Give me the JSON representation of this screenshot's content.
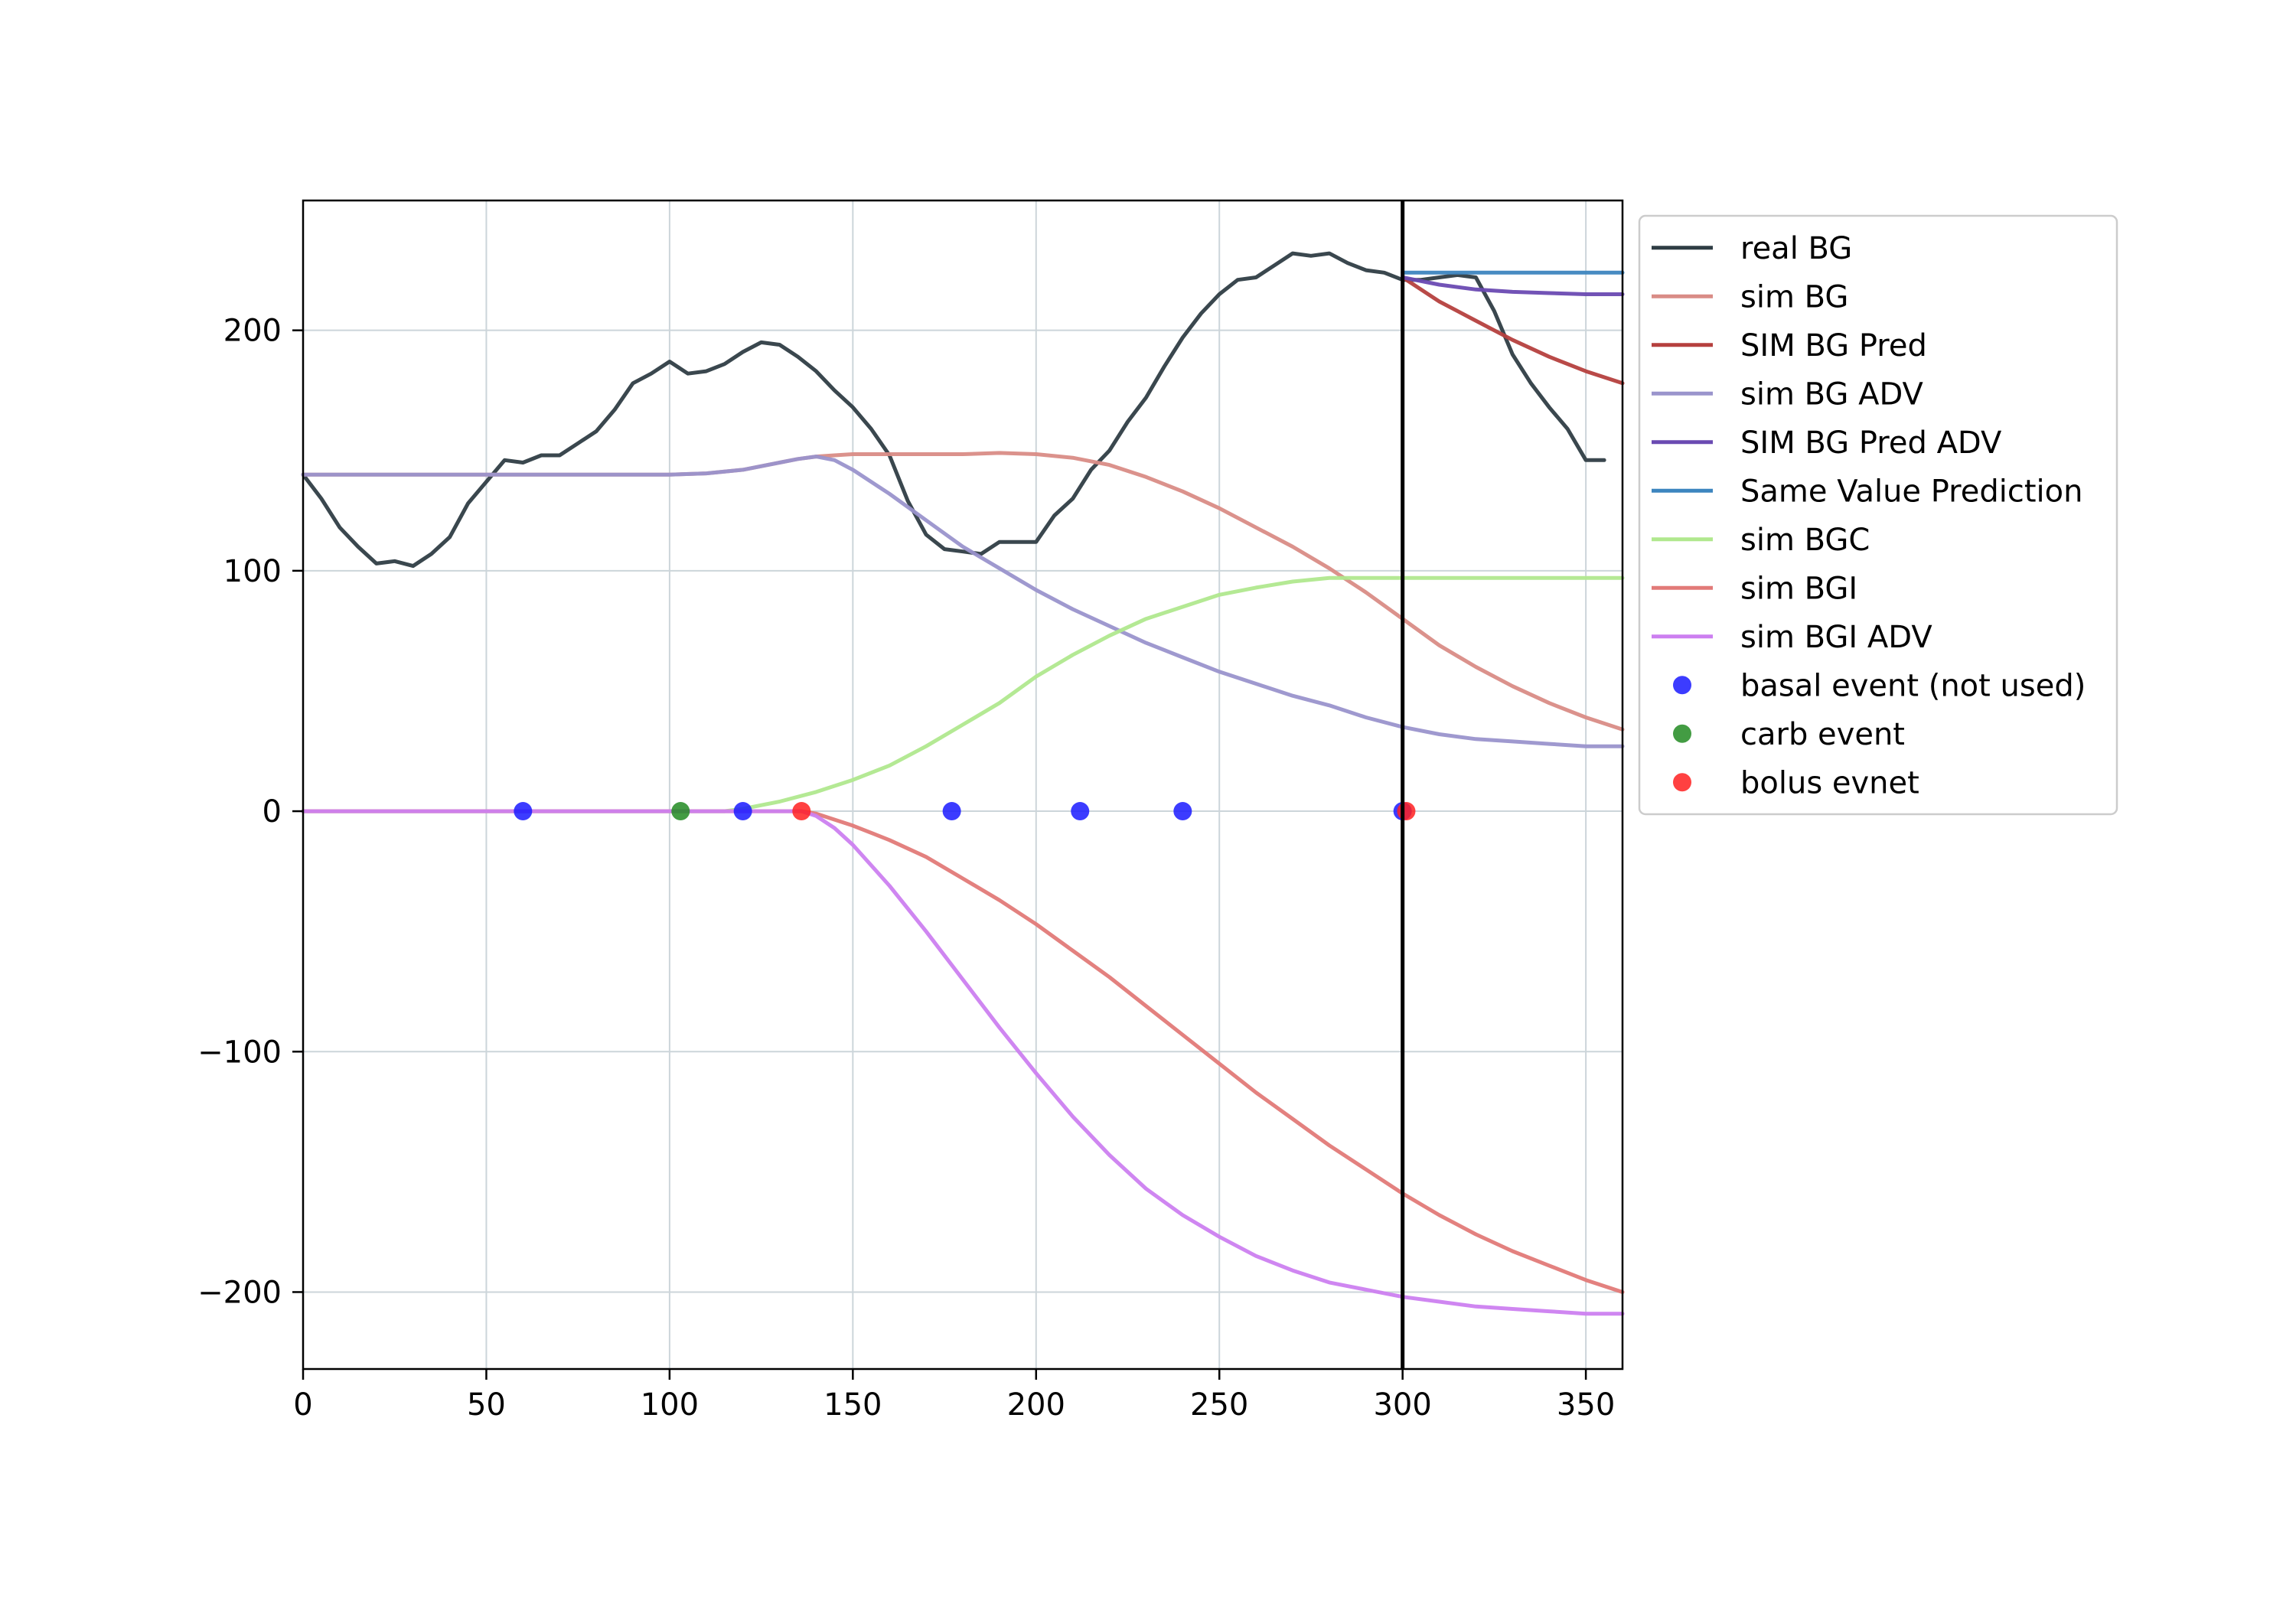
{
  "chart_data": {
    "type": "line",
    "title": "",
    "xlabel": "",
    "ylabel": "",
    "xlim": [
      0,
      360
    ],
    "ylim": [
      -232,
      254
    ],
    "grid": true,
    "legend_position": "outside-top-right",
    "x_ticks": [
      0,
      50,
      100,
      150,
      200,
      250,
      300,
      350
    ],
    "x_tick_labels": [
      "0",
      "50",
      "100",
      "150",
      "200",
      "250",
      "300",
      "350"
    ],
    "y_ticks": [
      -200,
      -100,
      0,
      100,
      200
    ],
    "y_tick_labels": [
      "−200",
      "−100",
      "0",
      "100",
      "200"
    ],
    "vertical_line": {
      "x": 300,
      "color": "#000000"
    },
    "series": [
      {
        "name": "real BG",
        "kind": "line",
        "color": "#2f3d44",
        "x": [
          0,
          5,
          10,
          15,
          20,
          25,
          30,
          35,
          40,
          45,
          50,
          55,
          60,
          65,
          70,
          75,
          80,
          85,
          90,
          95,
          100,
          105,
          110,
          115,
          120,
          125,
          130,
          135,
          140,
          145,
          150,
          155,
          160,
          165,
          170,
          175,
          180,
          185,
          190,
          195,
          200,
          205,
          210,
          215,
          220,
          225,
          230,
          235,
          240,
          245,
          250,
          255,
          260,
          265,
          270,
          275,
          280,
          285,
          290,
          295,
          300,
          305,
          310,
          315,
          320,
          325,
          330,
          335,
          340,
          345,
          350,
          355
        ],
        "y": [
          140,
          130,
          118,
          110,
          103,
          104,
          102,
          107,
          114,
          128,
          137,
          146,
          145,
          148,
          148,
          153,
          158,
          167,
          178,
          182,
          187,
          182,
          183,
          186,
          191,
          195,
          194,
          189,
          183,
          175,
          168,
          159,
          148,
          129,
          115,
          109,
          108,
          107,
          112,
          112,
          112,
          123,
          130,
          142,
          150,
          162,
          172,
          185,
          197,
          207,
          215,
          221,
          222,
          227,
          232,
          231,
          232,
          228,
          225,
          224,
          221,
          221,
          222,
          223,
          222,
          208,
          190,
          178,
          168,
          159,
          146,
          146
        ]
      },
      {
        "name": "sim BG",
        "kind": "line",
        "color": "#d98c86",
        "x": [
          0,
          20,
          40,
          60,
          80,
          100,
          110,
          120,
          130,
          135,
          140,
          145,
          150,
          160,
          170,
          180,
          190,
          200,
          210,
          220,
          230,
          240,
          250,
          260,
          270,
          280,
          290,
          300,
          310,
          320,
          330,
          340,
          350,
          360
        ],
        "y": [
          140,
          140,
          140,
          140,
          140,
          140,
          140.5,
          142,
          145,
          146.5,
          147.5,
          148,
          148.5,
          148.5,
          148.5,
          148.5,
          149,
          148.5,
          147,
          144,
          139,
          133,
          126,
          118,
          110,
          101,
          91,
          80,
          69,
          60,
          52,
          45,
          39,
          34
        ]
      },
      {
        "name": "SIM BG Pred",
        "kind": "line",
        "color": "#b5403e",
        "x": [
          300,
          310,
          320,
          330,
          340,
          350,
          360
        ],
        "y": [
          222,
          212,
          204,
          196,
          189,
          183,
          178
        ]
      },
      {
        "name": "sim BG ADV",
        "kind": "line",
        "color": "#9a94cc",
        "x": [
          0,
          20,
          40,
          60,
          80,
          100,
          110,
          120,
          130,
          135,
          140,
          145,
          150,
          160,
          170,
          180,
          190,
          200,
          210,
          220,
          230,
          240,
          250,
          260,
          270,
          280,
          290,
          300,
          310,
          320,
          330,
          340,
          350,
          360
        ],
        "y": [
          140,
          140,
          140,
          140,
          140,
          140,
          140.5,
          142,
          145,
          146.5,
          147.5,
          146,
          142,
          132,
          121,
          110,
          101,
          92,
          84,
          77,
          70,
          64,
          58,
          53,
          48,
          44,
          39,
          35,
          32,
          30,
          29,
          28,
          27,
          27
        ]
      },
      {
        "name": "SIM BG Pred ADV",
        "kind": "line",
        "color": "#6a4ab2",
        "x": [
          300,
          310,
          320,
          330,
          340,
          350,
          360
        ],
        "y": [
          222,
          219,
          217,
          216,
          215.5,
          215,
          215
        ]
      },
      {
        "name": "Same Value Prediction",
        "kind": "line",
        "color": "#3d85bf",
        "x": [
          300,
          360
        ],
        "y": [
          224,
          224
        ]
      },
      {
        "name": "sim BGC",
        "kind": "line",
        "color": "#b0e88e",
        "x": [
          0,
          50,
          100,
          115,
          120,
          130,
          140,
          150,
          160,
          170,
          180,
          190,
          200,
          210,
          220,
          230,
          240,
          250,
          260,
          270,
          280,
          290,
          300,
          320,
          340,
          360
        ],
        "y": [
          0,
          0,
          0,
          0,
          1,
          4,
          8,
          13,
          19,
          27,
          36,
          45,
          56,
          65,
          73,
          80,
          85,
          90,
          93,
          95.5,
          97,
          97,
          97,
          97,
          97,
          97
        ]
      },
      {
        "name": "sim BGI",
        "kind": "line",
        "color": "#e27a78",
        "x": [
          0,
          50,
          100,
          136,
          140,
          150,
          160,
          170,
          180,
          190,
          200,
          210,
          220,
          230,
          240,
          250,
          260,
          270,
          280,
          290,
          300,
          310,
          320,
          330,
          340,
          350,
          360
        ],
        "y": [
          0,
          0,
          0,
          0,
          -1,
          -6,
          -12,
          -19,
          -28,
          -37,
          -47,
          -58,
          -69,
          -81,
          -93,
          -105,
          -117,
          -128,
          -139,
          -149,
          -159,
          -168,
          -176,
          -183,
          -189,
          -195,
          -200
        ]
      },
      {
        "name": "sim BGI ADV",
        "kind": "line",
        "color": "#cc7ff0",
        "x": [
          0,
          50,
          100,
          136,
          140,
          145,
          150,
          160,
          170,
          180,
          190,
          200,
          210,
          220,
          230,
          240,
          250,
          260,
          270,
          280,
          290,
          300,
          310,
          320,
          330,
          340,
          350,
          360
        ],
        "y": [
          0,
          0,
          0,
          0,
          -2,
          -7,
          -14,
          -31,
          -50,
          -70,
          -90,
          -109,
          -127,
          -143,
          -157,
          -168,
          -177,
          -185,
          -191,
          -196,
          -199,
          -202,
          -204,
          -206,
          -207,
          -208,
          -209,
          -209
        ]
      },
      {
        "name": "basal event (not used)",
        "kind": "scatter",
        "color": "#1a1aff",
        "x": [
          60,
          120,
          177,
          212,
          240,
          300
        ],
        "y": [
          0,
          0,
          0,
          0,
          0,
          0
        ]
      },
      {
        "name": "carb event",
        "kind": "scatter",
        "color": "#228b22",
        "x": [
          103
        ],
        "y": [
          0
        ]
      },
      {
        "name": "bolus evnet",
        "kind": "scatter",
        "color": "#ff2020",
        "x": [
          136,
          301
        ],
        "y": [
          0,
          0
        ]
      }
    ]
  }
}
